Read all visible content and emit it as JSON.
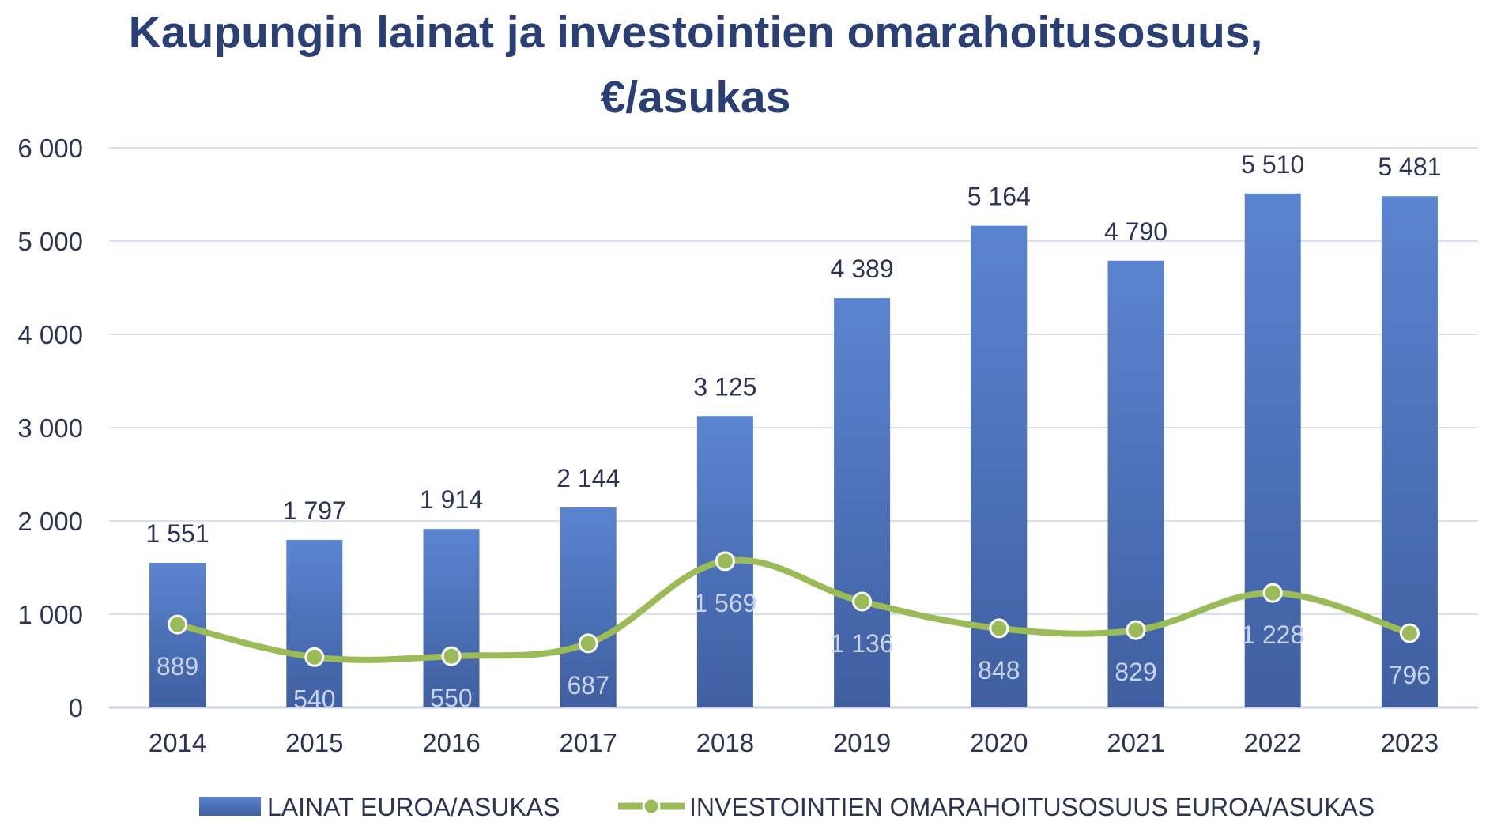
{
  "chart_data": {
    "type": "bar",
    "title_line1": "Kaupungin lainat ja investointien omarahoitusosuus,",
    "title_line2": "€/asukas",
    "categories": [
      "2014",
      "2015",
      "2016",
      "2017",
      "2018",
      "2019",
      "2020",
      "2021",
      "2022",
      "2023"
    ],
    "series": [
      {
        "name": "LAINAT EUROA/ASUKAS",
        "type": "bar",
        "values": [
          1551,
          1797,
          1914,
          2144,
          3125,
          4389,
          5164,
          4790,
          5510,
          5481
        ],
        "labels": [
          "1 551",
          "1 797",
          "1 914",
          "2 144",
          "3 125",
          "4 389",
          "5 164",
          "4 790",
          "5 510",
          "5 481"
        ]
      },
      {
        "name": "INVESTOINTIEN OMARAHOITUSOSUUS EUROA/ASUKAS",
        "type": "line",
        "values": [
          889,
          540,
          550,
          687,
          1569,
          1136,
          848,
          829,
          1228,
          796
        ],
        "labels": [
          "889",
          "540",
          "550",
          "687",
          "1 569",
          "1 136",
          "848",
          "829",
          "1 228",
          "796"
        ]
      }
    ],
    "ylim": [
      0,
      6000
    ],
    "yticks": [
      0,
      1000,
      2000,
      3000,
      4000,
      5000,
      6000
    ],
    "ytick_labels": [
      "0",
      "1 000",
      "2 000",
      "3 000",
      "4 000",
      "5 000",
      "6 000"
    ],
    "xlabel": "",
    "ylabel": "",
    "grid": true,
    "legend": "bottom"
  },
  "colors": {
    "bar_top": "#5b84d0",
    "bar_bottom": "#3f5fa0",
    "line": "#9bbb59",
    "grid": "#d9e0ee"
  }
}
